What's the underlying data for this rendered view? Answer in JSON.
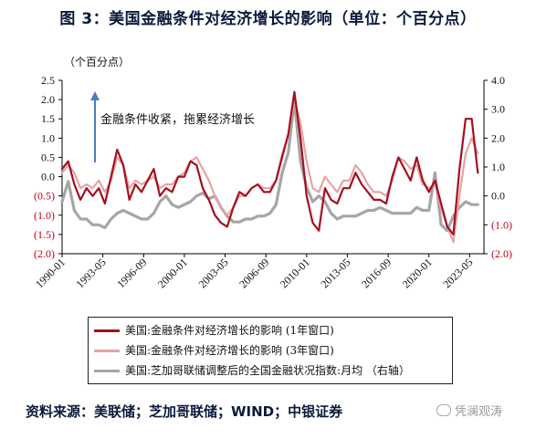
{
  "title": "图 3：美国金融条件对经济增长的影响（单位：个百分点）",
  "footer": "资料来源：美联储；芝加哥联储；WIND；中银证券",
  "watermark": "凭澜观涛",
  "chart_data": {
    "type": "line",
    "left_axis_unit": "（个百分点）",
    "left_ticks": [
      "2.5",
      "2.0",
      "1.5",
      "1.0",
      "0.5",
      "0.0",
      "(0.5)",
      "(1.0)",
      "(1.5)",
      "(2.0)"
    ],
    "left_tick_values": [
      2.5,
      2.0,
      1.5,
      1.0,
      0.5,
      0.0,
      -0.5,
      -1.0,
      -1.5,
      -2.0
    ],
    "ylim_left": [
      -2.0,
      2.5
    ],
    "right_ticks": [
      "4.0",
      "3.0",
      "2.0",
      "1.0",
      "0.0",
      "(1.0)",
      "(2.0)"
    ],
    "right_tick_values": [
      4.0,
      3.0,
      2.0,
      1.0,
      0.0,
      -1.0,
      -2.0
    ],
    "ylim_right": [
      -2.0,
      4.0
    ],
    "x_ticks": [
      "1990-01",
      "1993-05",
      "1996-09",
      "2000-01",
      "2003-05",
      "2006-09",
      "2010-01",
      "2013-05",
      "2016-09",
      "2020-01",
      "2023-05"
    ],
    "x_tick_values": [
      1990.0,
      1993.33,
      1996.67,
      2000.0,
      2003.33,
      2006.67,
      2010.0,
      2013.33,
      2016.67,
      2020.0,
      2023.33
    ],
    "xlim": [
      1990.0,
      2024.5
    ],
    "annotation": "金融条件收紧，拖累经济增长",
    "colors": {
      "series1": "#a50f1f",
      "series2": "#e8a3a3",
      "series3": "#a6a6a6",
      "arrow": "#4f7bbf",
      "negative_tick": "#c0001a"
    },
    "series": [
      {
        "name": "美国:金融条件对经济增长的影响 (1年窗口)",
        "axis": "left",
        "x": [
          1990.0,
          1990.5,
          1991.0,
          1991.5,
          1992.0,
          1992.5,
          1993.0,
          1993.5,
          1994.0,
          1994.5,
          1995.0,
          1995.5,
          1996.0,
          1996.5,
          1997.0,
          1997.5,
          1998.0,
          1998.5,
          1999.0,
          1999.5,
          2000.0,
          2000.5,
          2001.0,
          2001.5,
          2002.0,
          2002.5,
          2003.0,
          2003.5,
          2004.0,
          2004.5,
          2005.0,
          2005.5,
          2006.0,
          2006.5,
          2007.0,
          2007.5,
          2008.0,
          2008.5,
          2009.0,
          2009.5,
          2010.0,
          2010.5,
          2011.0,
          2011.5,
          2012.0,
          2012.5,
          2013.0,
          2013.5,
          2014.0,
          2014.5,
          2015.0,
          2015.5,
          2016.0,
          2016.5,
          2017.0,
          2017.5,
          2018.0,
          2018.5,
          2019.0,
          2019.5,
          2020.0,
          2020.5,
          2021.0,
          2021.5,
          2022.0,
          2022.5,
          2023.0,
          2023.5,
          2024.0
        ],
        "y": [
          0.2,
          0.4,
          -0.2,
          -0.6,
          -0.3,
          -0.5,
          -0.3,
          -0.7,
          0.0,
          0.7,
          0.3,
          -0.6,
          -0.2,
          -0.4,
          -0.1,
          0.2,
          -0.5,
          -0.3,
          -0.4,
          0.0,
          0.0,
          0.4,
          0.3,
          -0.3,
          -0.6,
          -1.0,
          -1.2,
          -1.3,
          -0.8,
          -0.4,
          -0.5,
          -0.3,
          -0.2,
          -0.4,
          -0.4,
          -0.1,
          0.5,
          1.1,
          2.2,
          1.0,
          -0.5,
          -1.2,
          -1.4,
          -0.3,
          -0.6,
          -0.7,
          -0.3,
          -0.3,
          0.1,
          -0.2,
          -0.4,
          -0.6,
          -0.6,
          -0.7,
          0.0,
          0.5,
          0.2,
          -0.1,
          0.5,
          -0.1,
          -0.4,
          -0.1,
          -0.7,
          -1.3,
          -1.5,
          0.2,
          1.5,
          1.5,
          0.1
        ]
      },
      {
        "name": "美国:金融条件对经济增长的影响 (3年窗口)",
        "axis": "left",
        "x": [
          1990.0,
          1990.5,
          1991.0,
          1991.5,
          1992.0,
          1992.5,
          1993.0,
          1993.5,
          1994.0,
          1994.5,
          1995.0,
          1995.5,
          1996.0,
          1996.5,
          1997.0,
          1997.5,
          1998.0,
          1998.5,
          1999.0,
          1999.5,
          2000.0,
          2000.5,
          2001.0,
          2001.5,
          2002.0,
          2002.5,
          2003.0,
          2003.5,
          2004.0,
          2004.5,
          2005.0,
          2005.5,
          2006.0,
          2006.5,
          2007.0,
          2007.5,
          2008.0,
          2008.5,
          2009.0,
          2009.5,
          2010.0,
          2010.5,
          2011.0,
          2011.5,
          2012.0,
          2012.5,
          2013.0,
          2013.5,
          2014.0,
          2014.5,
          2015.0,
          2015.5,
          2016.0,
          2016.5,
          2017.0,
          2017.5,
          2018.0,
          2018.5,
          2019.0,
          2019.5,
          2020.0,
          2020.5,
          2021.0,
          2021.5,
          2022.0,
          2022.5,
          2023.0,
          2023.5,
          2024.0
        ],
        "y": [
          0.1,
          0.3,
          0.1,
          -0.3,
          -0.2,
          -0.3,
          -0.1,
          -0.4,
          -0.1,
          0.5,
          0.3,
          -0.3,
          -0.1,
          -0.2,
          -0.1,
          0.0,
          -0.3,
          -0.2,
          -0.2,
          0.0,
          0.1,
          0.4,
          0.5,
          0.2,
          -0.1,
          -0.5,
          -0.8,
          -1.0,
          -0.8,
          -0.5,
          -0.5,
          -0.3,
          -0.2,
          -0.3,
          -0.3,
          -0.1,
          0.6,
          1.1,
          2.0,
          1.4,
          0.4,
          -0.3,
          -0.4,
          0.0,
          -0.2,
          -0.4,
          -0.1,
          -0.1,
          0.3,
          0.1,
          -0.2,
          -0.4,
          -0.4,
          -0.5,
          -0.1,
          0.5,
          0.4,
          0.2,
          0.3,
          -0.2,
          -0.3,
          -0.2,
          -0.8,
          -1.3,
          -1.7,
          -0.5,
          0.6,
          1.0,
          0.6
        ]
      },
      {
        "name": "美国:芝加哥联储调整后的全国金融状况指数:月均 （右轴）",
        "axis": "right",
        "x": [
          1990.0,
          1990.5,
          1991.0,
          1991.5,
          1992.0,
          1992.5,
          1993.0,
          1993.5,
          1994.0,
          1994.5,
          1995.0,
          1995.5,
          1996.0,
          1996.5,
          1997.0,
          1997.5,
          1998.0,
          1998.5,
          1999.0,
          1999.5,
          2000.0,
          2000.5,
          2001.0,
          2001.5,
          2002.0,
          2002.5,
          2003.0,
          2003.5,
          2004.0,
          2004.5,
          2005.0,
          2005.5,
          2006.0,
          2006.5,
          2007.0,
          2007.5,
          2008.0,
          2008.5,
          2009.0,
          2009.5,
          2010.0,
          2010.5,
          2011.0,
          2011.5,
          2012.0,
          2012.5,
          2013.0,
          2013.5,
          2014.0,
          2014.5,
          2015.0,
          2015.5,
          2016.0,
          2016.5,
          2017.0,
          2017.5,
          2018.0,
          2018.5,
          2019.0,
          2019.5,
          2020.0,
          2020.5,
          2021.0,
          2021.5,
          2022.0,
          2022.5,
          2023.0,
          2023.5,
          2024.0
        ],
        "y": [
          -0.2,
          0.5,
          -0.5,
          -0.8,
          -0.8,
          -1.0,
          -1.0,
          -1.1,
          -0.8,
          -0.6,
          -0.5,
          -0.6,
          -0.7,
          -0.8,
          -0.8,
          -0.6,
          -0.2,
          0.0,
          -0.3,
          -0.4,
          -0.3,
          -0.2,
          0.0,
          0.1,
          -0.1,
          0.0,
          -0.4,
          -0.7,
          -0.9,
          -0.9,
          -0.8,
          -0.8,
          -0.7,
          -0.7,
          -0.6,
          -0.3,
          0.8,
          1.5,
          3.3,
          1.2,
          0.3,
          -0.2,
          0.0,
          -0.2,
          -0.6,
          -0.8,
          -0.7,
          -0.7,
          -0.7,
          -0.6,
          -0.5,
          -0.5,
          -0.4,
          -0.5,
          -0.6,
          -0.6,
          -0.6,
          -0.6,
          -0.4,
          -0.5,
          -0.5,
          0.8,
          -1.0,
          -1.2,
          -0.7,
          -0.4,
          -0.2,
          -0.3,
          -0.3
        ]
      }
    ]
  }
}
